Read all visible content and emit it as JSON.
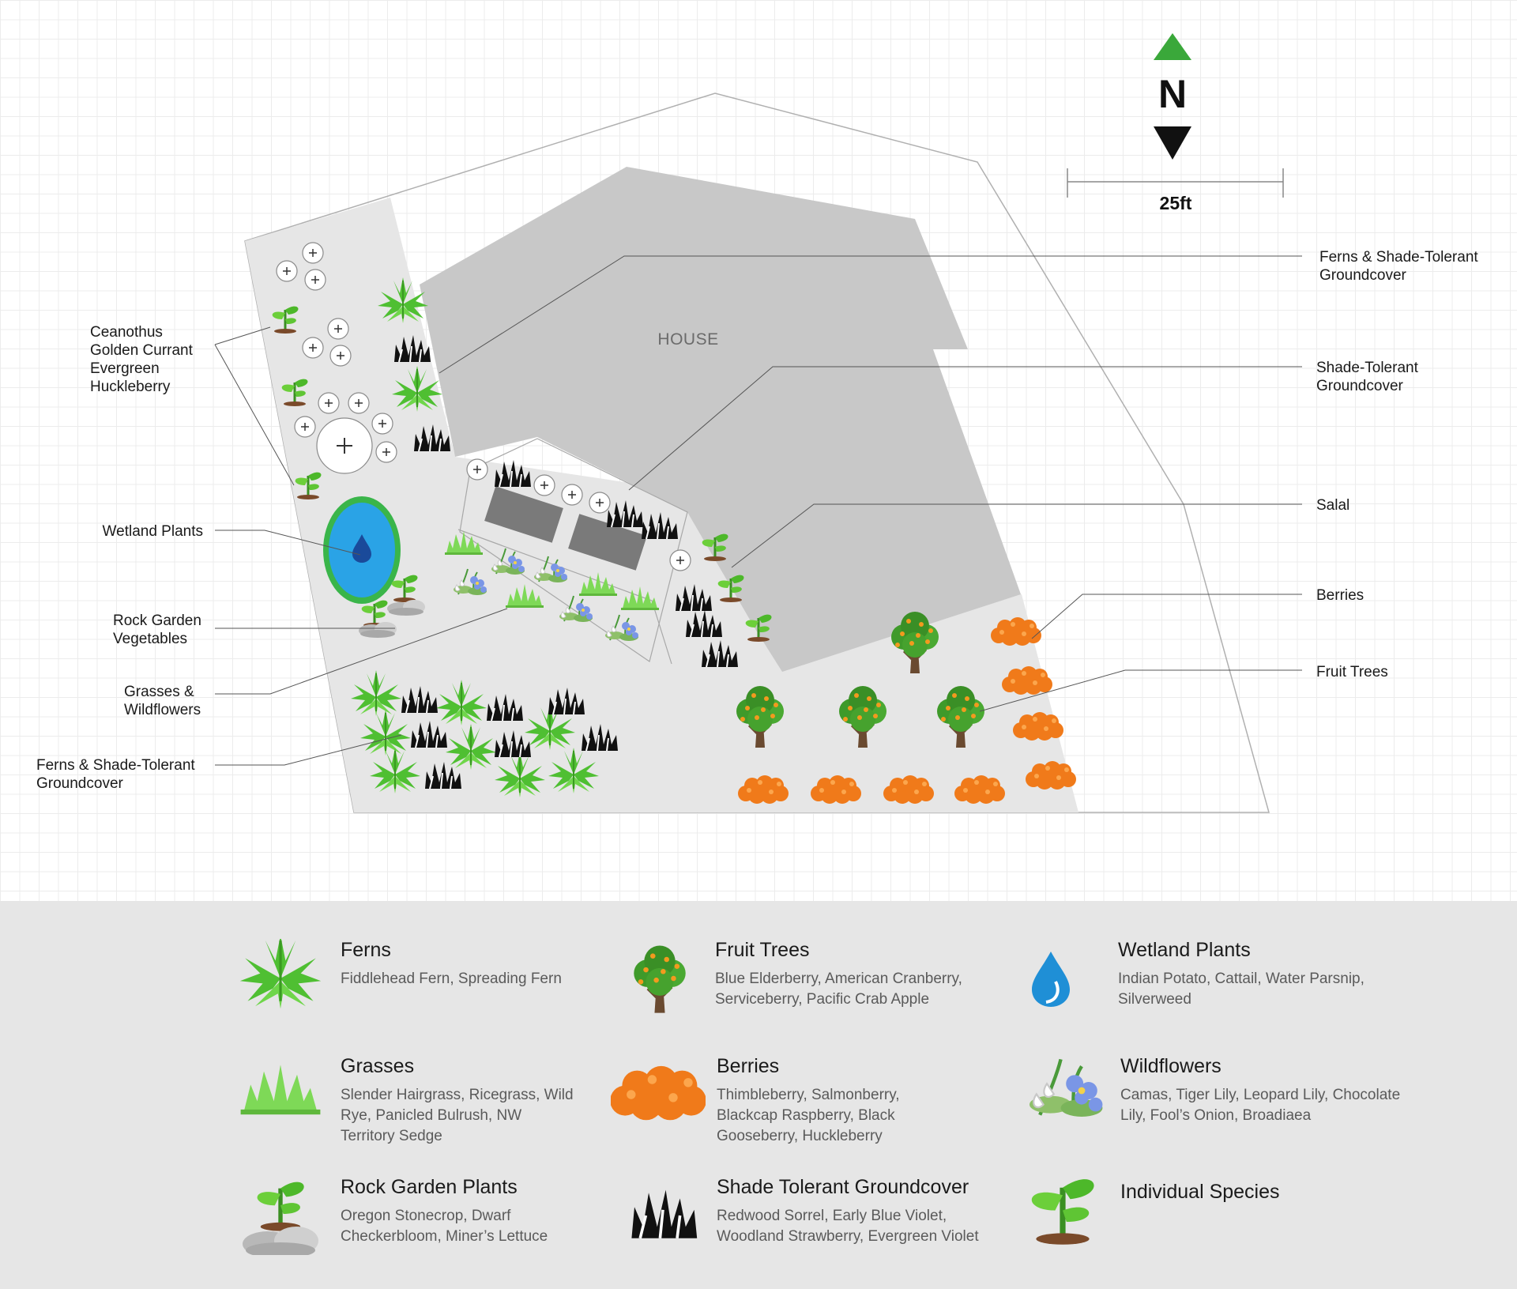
{
  "map": {
    "house_label": "HOUSE",
    "north_label": "N",
    "scale_label": "25ft",
    "callouts": {
      "ferns_shade_top": [
        "Ferns & Shade-Tolerant",
        "Groundcover"
      ],
      "shade_groundcover": [
        "Shade-Tolerant",
        "Groundcover"
      ],
      "salal": [
        "Salal"
      ],
      "berries": [
        "Berries"
      ],
      "fruit_trees": [
        "Fruit Trees"
      ],
      "ceanothus": [
        "Ceanothus",
        "Golden Currant",
        "Evergreen",
        "Huckleberry"
      ],
      "wetland": [
        "Wetland Plants"
      ],
      "rock_garden": [
        "Rock Garden",
        "Vegetables"
      ],
      "grasses_wildflowers": [
        "Grasses &",
        "Wildflowers"
      ],
      "ferns_shade_bottom": [
        "Ferns & Shade-Tolerant",
        "Groundcover"
      ]
    }
  },
  "legend": {
    "ferns": {
      "title": "Ferns",
      "desc": "Fiddlehead Fern, Spreading Fern",
      "icon": "fern-icon"
    },
    "fruit_trees": {
      "title": "Fruit Trees",
      "desc": "Blue Elderberry, American Cranberry, Serviceberry, Pacific Crab Apple",
      "icon": "fruit-tree-icon"
    },
    "wetland": {
      "title": "Wetland Plants",
      "desc": "Indian Potato, Cattail, Water Parsnip, Silverweed",
      "icon": "water-drop-icon"
    },
    "grasses": {
      "title": "Grasses",
      "desc": "Slender Hairgrass, Ricegrass, Wild Rye, Panicled Bulrush, NW Territory Sedge",
      "icon": "grass-icon"
    },
    "berries": {
      "title": "Berries",
      "desc": "Thimbleberry,  Salmonberry, Blackcap Raspberry, Black Gooseberry, Huckleberry",
      "icon": "berry-icon"
    },
    "wildflowers": {
      "title": "Wildflowers",
      "desc": "Camas, Tiger Lily, Leopard Lily, Chocolate Lily, Fool’s Onion, Broadiaea",
      "icon": "wildflower-icon"
    },
    "rock_garden": {
      "title": "Rock Garden Plants",
      "desc": "Oregon Stonecrop, Dwarf Checkerbloom, Miner’s Lettuce",
      "icon": "rock-garden-icon"
    },
    "shade": {
      "title": "Shade Tolerant Groundcover",
      "desc": "Redwood Sorrel, Early Blue Violet, Woodland Strawberry, Evergreen Violet",
      "icon": "shade-groundcover-icon"
    },
    "species": {
      "title": "Individual Species",
      "desc": "",
      "icon": "sprout-icon"
    }
  },
  "colors": {
    "fern": "#5cc83a",
    "grass": "#7ed957",
    "tree_foliage": "#3f9a2a",
    "fruit": "#f08a1c",
    "berry": "#f27a1a",
    "water": "#29a3e6",
    "pond_ring": "#36b34a",
    "house": "#c8c8c8",
    "yard": "#e6e6e6",
    "north_arrow": "#3aa83a",
    "legend_bg": "#e6e6e6"
  }
}
